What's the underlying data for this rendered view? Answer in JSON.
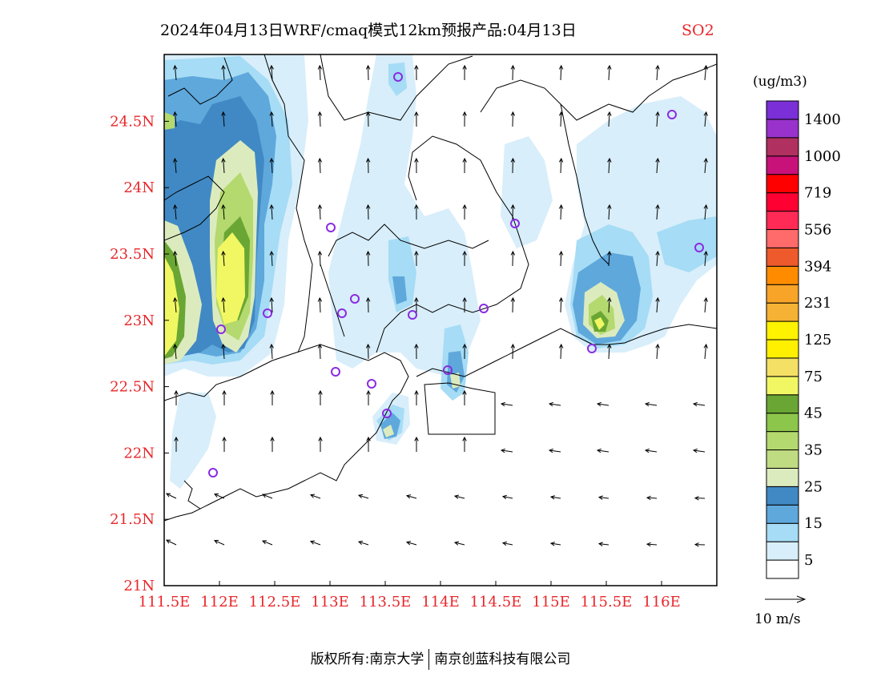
{
  "title": {
    "main": "2024年04月13日WRF/cmaq模式12km预报产品:04月13日",
    "species": "SO2",
    "species_color": "#e8262a"
  },
  "map": {
    "lon_ticks": [
      "111.5E",
      "112E",
      "112.5E",
      "113E",
      "113.5E",
      "114E",
      "114.5E",
      "115E",
      "115.5E",
      "116E"
    ],
    "lat_ticks": [
      "21N",
      "21.5N",
      "22N",
      "22.5N",
      "23N",
      "23.5N",
      "24N",
      "24.5N"
    ],
    "tick_color": "#e8262a"
  },
  "colorbar": {
    "unit": "(ug/m3)",
    "labels": [
      "5",
      "15",
      "25",
      "35",
      "45",
      "75",
      "125",
      "231",
      "394",
      "556",
      "719",
      "1000",
      "1400"
    ],
    "colors": [
      "#ffffff",
      "#d8eefa",
      "#a6dcf5",
      "#5fa8dc",
      "#4189c4",
      "#dcebbe",
      "#c0dc82",
      "#b4d96e",
      "#8cc64b",
      "#6aa633",
      "#f0f763",
      "#f5e066",
      "#fff000",
      "#fff200",
      "#f5b235",
      "#f7a428",
      "#ff8c00",
      "#ee5a2c",
      "#ff6a6a",
      "#ff2a55",
      "#ff0033",
      "#ff0000",
      "#c8127a",
      "#b03060",
      "#9932cc",
      "#7b2fd6"
    ]
  },
  "wind_legend": {
    "label": "10 m/s"
  },
  "footer": {
    "copyright": "版权所有:南京大学",
    "company": "南京创蓝科技有限公司"
  },
  "palette": {
    "contour_light": "#d8eefa",
    "contour_mid": "#a6dcf5",
    "contour_blue": "#5fa8dc",
    "contour_dark": "#4189c4",
    "contour_pale_green": "#dcebbe",
    "contour_green": "#b4d96e",
    "contour_dgreen": "#6aa633",
    "contour_yellow": "#f0f763",
    "marker": "#8a2be2"
  }
}
